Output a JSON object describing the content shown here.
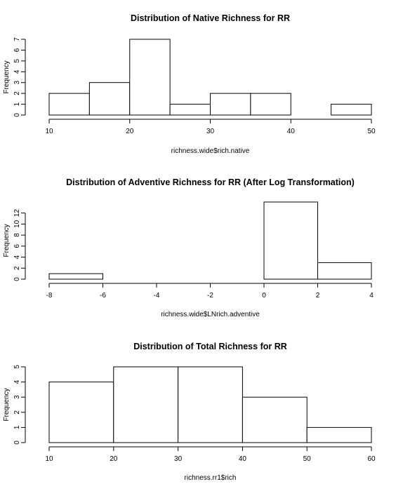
{
  "chart_data": [
    {
      "type": "bar",
      "title": "Distribution of Native Richness for RR",
      "xlabel": "richness.wide$rich.native",
      "ylabel": "Frequency",
      "bins": [
        [
          10,
          15
        ],
        [
          15,
          20
        ],
        [
          20,
          25
        ],
        [
          25,
          30
        ],
        [
          30,
          35
        ],
        [
          35,
          40
        ],
        [
          40,
          45
        ],
        [
          45,
          50
        ]
      ],
      "values": [
        2,
        3,
        7,
        1,
        2,
        2,
        0,
        1
      ],
      "xlim": [
        10,
        50
      ],
      "ylim": [
        0,
        7
      ],
      "xticks": [
        10,
        20,
        30,
        40,
        50
      ],
      "xtick_labels": [
        "10",
        "20",
        "30",
        "40",
        "50"
      ],
      "yticks": [
        0,
        1,
        2,
        3,
        4,
        5,
        6,
        7
      ],
      "ytick_labels": [
        "0",
        "1",
        "2",
        "3",
        "4",
        "5",
        "6",
        "7"
      ],
      "grid": false
    },
    {
      "type": "bar",
      "title": "Distribution of Adventive Richness for RR (After Log Transformation)",
      "xlabel": "richness.wide$LNrich.adventive",
      "ylabel": "Frequency",
      "bins": [
        [
          -8,
          -6
        ],
        [
          -6,
          -4
        ],
        [
          -4,
          -2
        ],
        [
          -2,
          0
        ],
        [
          0,
          2
        ],
        [
          2,
          4
        ]
      ],
      "values": [
        1,
        0,
        0,
        0,
        14,
        3
      ],
      "xlim": [
        -8,
        4
      ],
      "ylim": [
        0,
        14
      ],
      "xticks": [
        -8,
        -6,
        -4,
        -2,
        0,
        2,
        4
      ],
      "xtick_labels": [
        "-8",
        "-6",
        "-4",
        "-2",
        "0",
        "2",
        "4"
      ],
      "yticks": [
        0,
        2,
        4,
        6,
        8,
        10,
        12
      ],
      "ytick_labels": [
        "0",
        "2",
        "4",
        "6",
        "8",
        "10",
        "12"
      ],
      "grid": false
    },
    {
      "type": "bar",
      "title": "Distribution of Total Richness for RR",
      "xlabel": "richness.rr1$rich",
      "ylabel": "Frequency",
      "bins": [
        [
          10,
          20
        ],
        [
          20,
          30
        ],
        [
          30,
          40
        ],
        [
          40,
          50
        ],
        [
          50,
          60
        ]
      ],
      "values": [
        4,
        5,
        5,
        3,
        1
      ],
      "xlim": [
        10,
        60
      ],
      "ylim": [
        0,
        5
      ],
      "xticks": [
        10,
        20,
        30,
        40,
        50,
        60
      ],
      "xtick_labels": [
        "10",
        "20",
        "30",
        "40",
        "50",
        "60"
      ],
      "yticks": [
        0,
        1,
        2,
        3,
        4,
        5
      ],
      "ytick_labels": [
        "0",
        "1",
        "2",
        "3",
        "4",
        "5"
      ],
      "grid": false
    }
  ]
}
